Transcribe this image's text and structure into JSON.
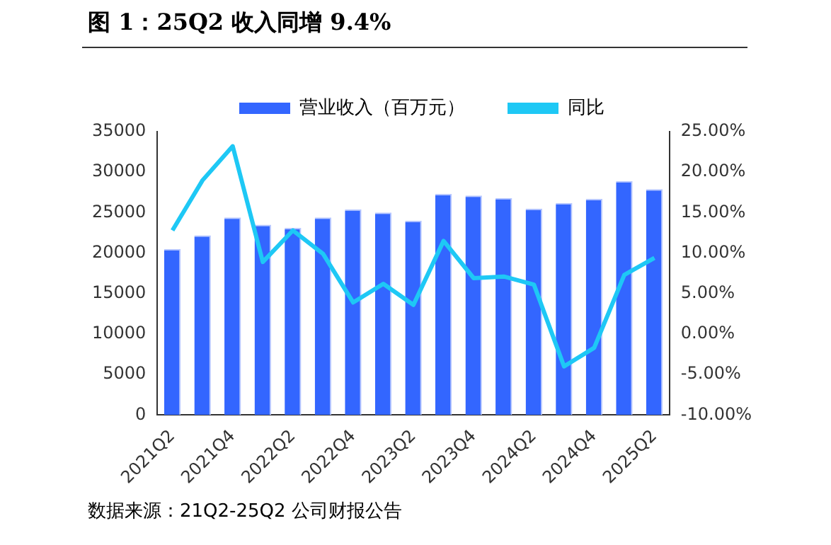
{
  "chart_data": {
    "type": "bar",
    "title": "图 1：25Q2 收入同增 9.4%",
    "categories": [
      "2021Q2",
      null,
      "2021Q4",
      null,
      "2022Q2",
      null,
      "2022Q4",
      null,
      "2023Q2",
      null,
      "2023Q4",
      null,
      "2024Q2",
      null,
      "2024Q4",
      null,
      "2025Q2"
    ],
    "series": [
      {
        "name": "营业收入（百万元）",
        "color": "#3366ff",
        "values": [
          20500,
          22200,
          24400,
          23500,
          23100,
          24400,
          25400,
          25000,
          24000,
          27300,
          27100,
          26800,
          25500,
          26200,
          26700,
          28900,
          27900
        ]
      },
      {
        "name": "同比",
        "type": "line",
        "axis": "y2",
        "color": "#1ec8f5",
        "values": [
          12.8,
          19.0,
          23.2,
          8.9,
          12.8,
          9.9,
          3.9,
          6.2,
          3.6,
          11.5,
          6.9,
          7.1,
          6.1,
          -4.0,
          -1.7,
          7.3,
          9.4
        ]
      }
    ],
    "ylim": [
      0,
      35000
    ],
    "yticks": [
      0,
      5000,
      10000,
      15000,
      20000,
      25000,
      30000,
      35000
    ],
    "y2lim": [
      -10,
      25
    ],
    "y2ticks": [
      {
        "value": -10,
        "label": "-10.00%"
      },
      {
        "value": -5,
        "label": "-5.00%"
      },
      {
        "value": 0,
        "label": "0.00%"
      },
      {
        "value": 5,
        "label": "5.00%"
      },
      {
        "value": 10,
        "label": "10.00%"
      },
      {
        "value": 15,
        "label": "15.00%"
      },
      {
        "value": 20,
        "label": "20.00%"
      },
      {
        "value": 25,
        "label": "25.00%"
      }
    ],
    "legend": "top",
    "grid": false,
    "marker": "none",
    "annotations": [
      "数据来源：21Q2-25Q2 公司财报公告"
    ]
  }
}
